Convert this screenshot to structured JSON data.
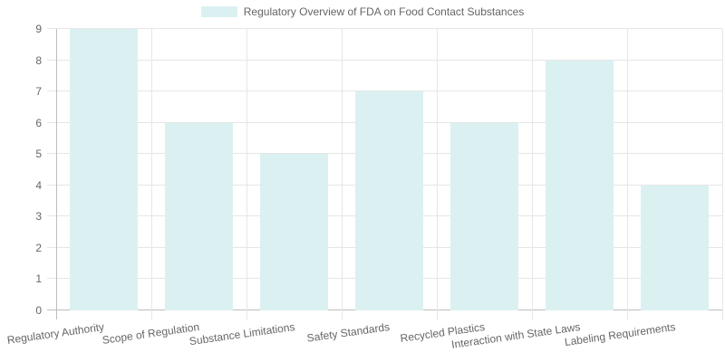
{
  "chart_data": {
    "type": "bar",
    "title": "Regulatory Overview of FDA on Food Contact Substances",
    "legend_position": "top",
    "grid": true,
    "categories": [
      "Regulatory Authority",
      "Scope of Regulation",
      "Substance Limitations",
      "Safety Standards",
      "Recycled Plastics",
      "Interaction with State Laws",
      "Labeling Requirements"
    ],
    "values": [
      9,
      6,
      5,
      7,
      6,
      8,
      4
    ],
    "xlabel": "",
    "ylabel": "",
    "ylim": [
      0,
      9
    ],
    "ytick_step": 1,
    "colors": {
      "bar_fill": "#dbf1f1",
      "grid_line": "#e6e6e6",
      "axis_line": "#bdbdbd",
      "text": "#666666",
      "background": "#ffffff"
    }
  }
}
